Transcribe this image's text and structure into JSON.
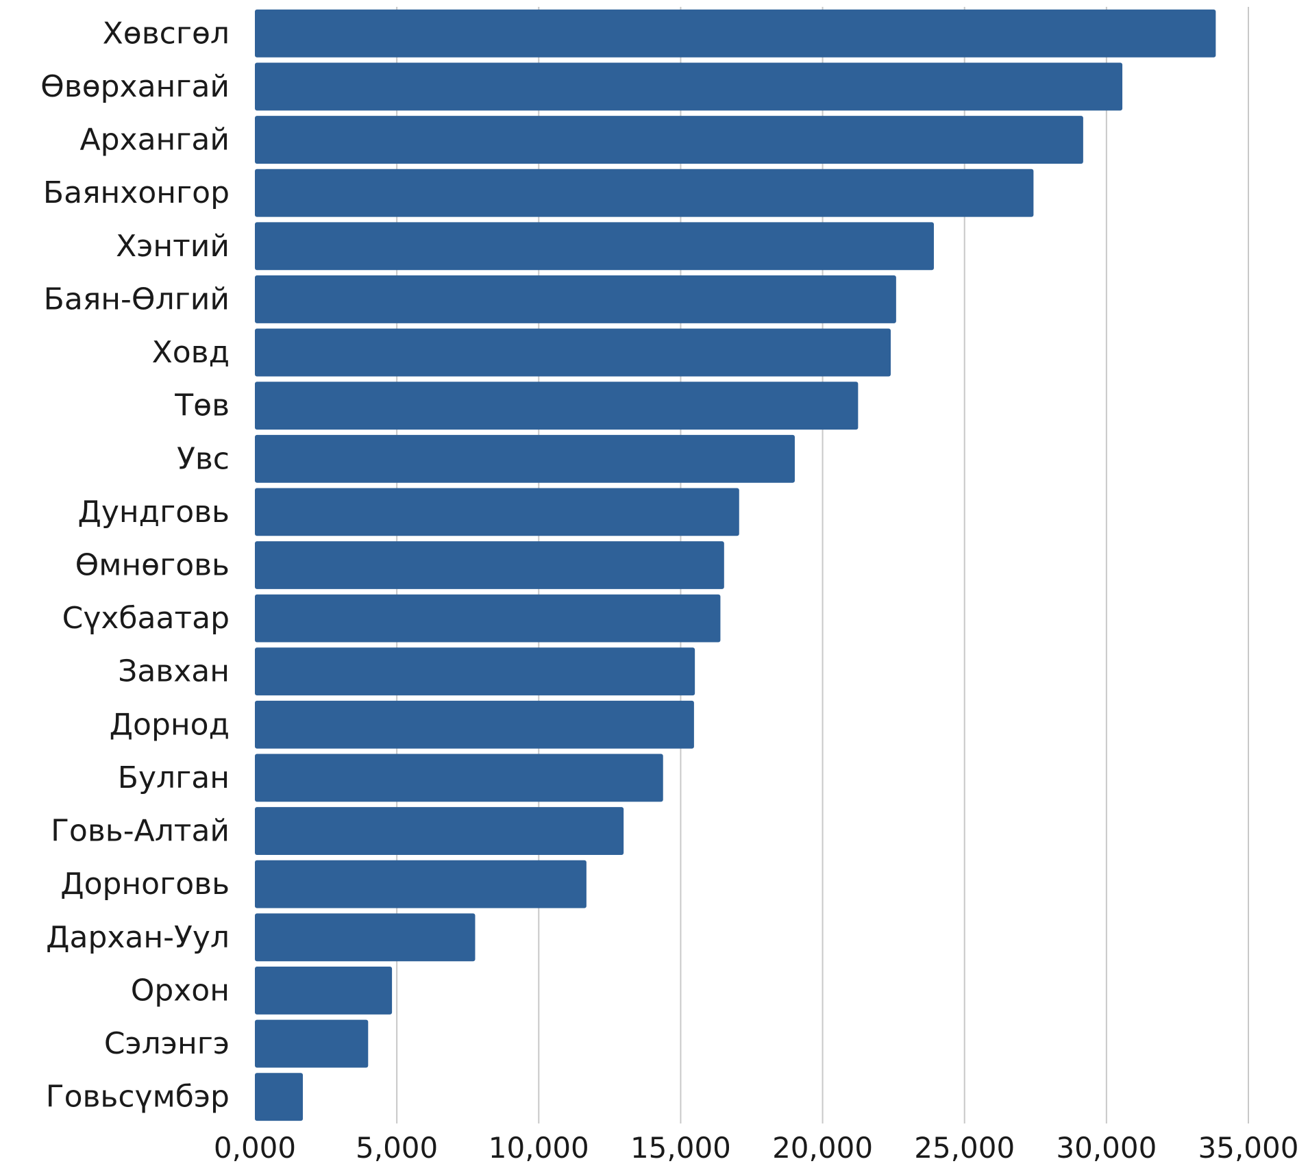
{
  "chart_data": {
    "type": "bar",
    "orientation": "horizontal",
    "categories": [
      "Хөвсгөл",
      "Өвөрхангай",
      "Архангай",
      "Баянхонгор",
      "Хэнтий",
      "Баян-Өлгий",
      "Ховд",
      "Төв",
      "Увс",
      "Дундговь",
      "Өмнөговь",
      "Сүхбаатар",
      "Завхан",
      "Дорнод",
      "Булган",
      "Говь-Алтай",
      "Дорноговь",
      "Дархан-Уул",
      "Орхон",
      "Сэлэнгэ",
      "Говьсүмбэр"
    ],
    "values": [
      33850,
      30560,
      29180,
      27430,
      23920,
      22590,
      22400,
      21250,
      19020,
      17060,
      16530,
      16400,
      15500,
      15470,
      14380,
      12990,
      11680,
      7760,
      4830,
      3990,
      1690
    ],
    "xlim": [
      0,
      35000
    ],
    "xticks": [
      0,
      5000,
      10000,
      15000,
      20000,
      25000,
      30000,
      35000
    ],
    "xtick_labels": [
      "0,000",
      "5,000",
      "10,000",
      "15,000",
      "20,000",
      "25,000",
      "30,000",
      "35,000"
    ],
    "grid": "vertical",
    "bar_color": "#2f6198"
  }
}
